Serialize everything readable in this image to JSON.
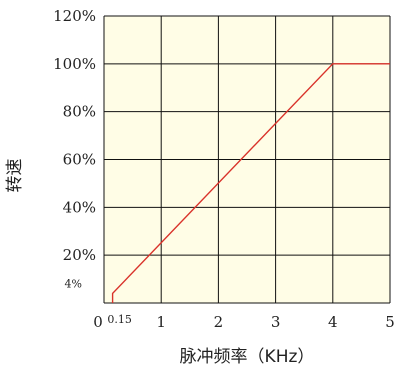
{
  "chart_data": {
    "type": "line",
    "xlabel": "脉冲频率（KHz）",
    "ylabel": "转速",
    "xlim": [
      0,
      5
    ],
    "ylim": [
      0,
      120
    ],
    "grid": true,
    "x_ticks": [
      "0",
      "1",
      "2",
      "3",
      "4",
      "5"
    ],
    "y_ticks": [
      "20%",
      "40%",
      "60%",
      "80%",
      "100%",
      "120%"
    ],
    "annotations": [
      {
        "text": "0.15",
        "axis": "x",
        "value": 0.15
      },
      {
        "text": "4%",
        "axis": "y",
        "value": 4
      }
    ],
    "series": [
      {
        "x": [
          0.15,
          0.15,
          4,
          5
        ],
        "y": [
          0,
          4,
          100,
          100
        ],
        "color": "#d9332b"
      }
    ],
    "colors": {
      "plot_background": "#fffde6",
      "grid": "#111111",
      "line": "#d9332b"
    }
  }
}
